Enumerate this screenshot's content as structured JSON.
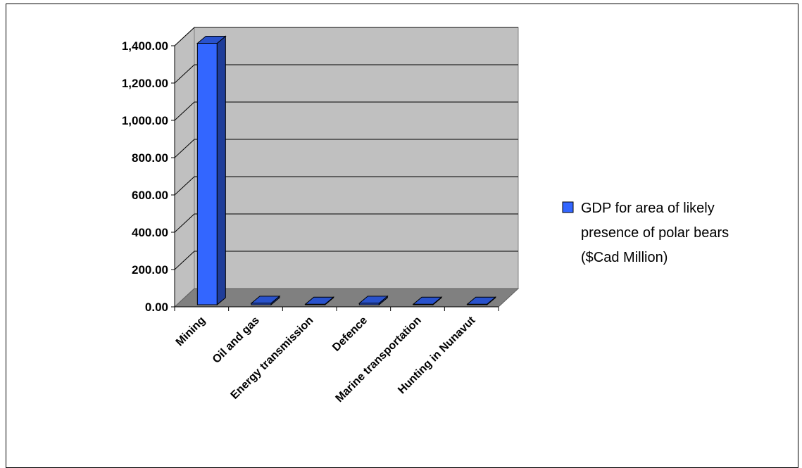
{
  "chart_data": {
    "type": "bar",
    "categories": [
      "Mining",
      "Oil and gas",
      "Energy transmission",
      "Defence",
      "Marine transportation",
      "Hunting in Nunavut"
    ],
    "series": [
      {
        "name": "GDP for area of likely presence of polar bears ($Cad Million)",
        "values": [
          1402,
          8,
          3,
          8,
          3,
          3
        ],
        "color": "#3366ff"
      }
    ],
    "title": "",
    "xlabel": "",
    "ylabel": "",
    "ylim": [
      0,
      1400
    ],
    "yticks": [
      "0.00",
      "200.00",
      "400.00",
      "600.00",
      "800.00",
      "1,000.00",
      "1,200.00",
      "1,400.00"
    ],
    "grid": true,
    "legend": "right",
    "legend_lines": [
      "GDP for area of likely",
      "presence of polar bears",
      "($Cad Million)"
    ],
    "colors": {
      "back_wall": "#c0c0c0",
      "floor": "#808080",
      "bar_front": "#3366ff",
      "bar_side": "#1f3d99",
      "bar_top": "#2952cc"
    }
  }
}
